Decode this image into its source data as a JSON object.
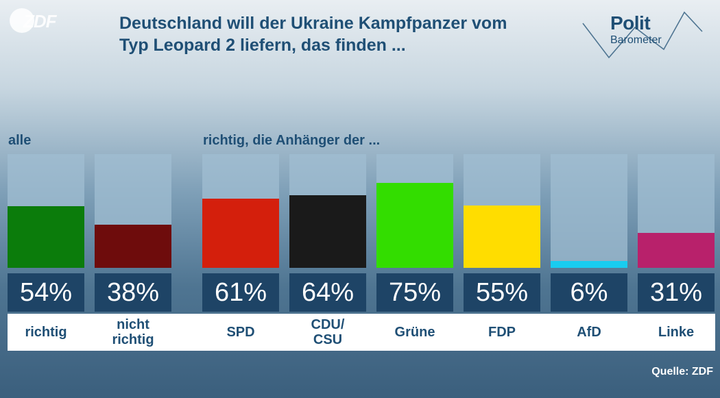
{
  "logo": {
    "text": "ZDF"
  },
  "title": {
    "line1": "Deutschland will der Ukraine Kampfpanzer vom",
    "line2": "Typ Leopard 2 liefern, das finden ..."
  },
  "brand": {
    "polit": "Polit",
    "barometer": "Barometer"
  },
  "source": "Quelle: ZDF",
  "chart_data": {
    "type": "bar",
    "title": "Deutschland will der Ukraine Kampfpanzer vom Typ Leopard 2 liefern, das finden ...",
    "ylim": [
      0,
      100
    ],
    "unit": "%",
    "groups": [
      {
        "label": "alle",
        "bars": [
          {
            "category": "richtig",
            "value": 54,
            "display": "54%",
            "color": "#0b7c0b"
          },
          {
            "category": "nicht richtig",
            "value": 38,
            "display": "38%",
            "color": "#6e0c0c"
          }
        ]
      },
      {
        "label": "richtig, die Anhänger der ...",
        "bars": [
          {
            "category": "SPD",
            "value": 61,
            "display": "61%",
            "color": "#d41f0c"
          },
          {
            "category": "CDU/ CSU",
            "value": 64,
            "display": "64%",
            "color": "#1a1a1a"
          },
          {
            "category": "Grüne",
            "value": 75,
            "display": "75%",
            "color": "#33dd00"
          },
          {
            "category": "FDP",
            "value": 55,
            "display": "55%",
            "color": "#ffdd00"
          },
          {
            "category": "AfD",
            "value": 6,
            "display": "6%",
            "color": "#19ccf0"
          },
          {
            "category": "Linke",
            "value": 31,
            "display": "31%",
            "color": "#b8216b"
          }
        ]
      }
    ]
  }
}
